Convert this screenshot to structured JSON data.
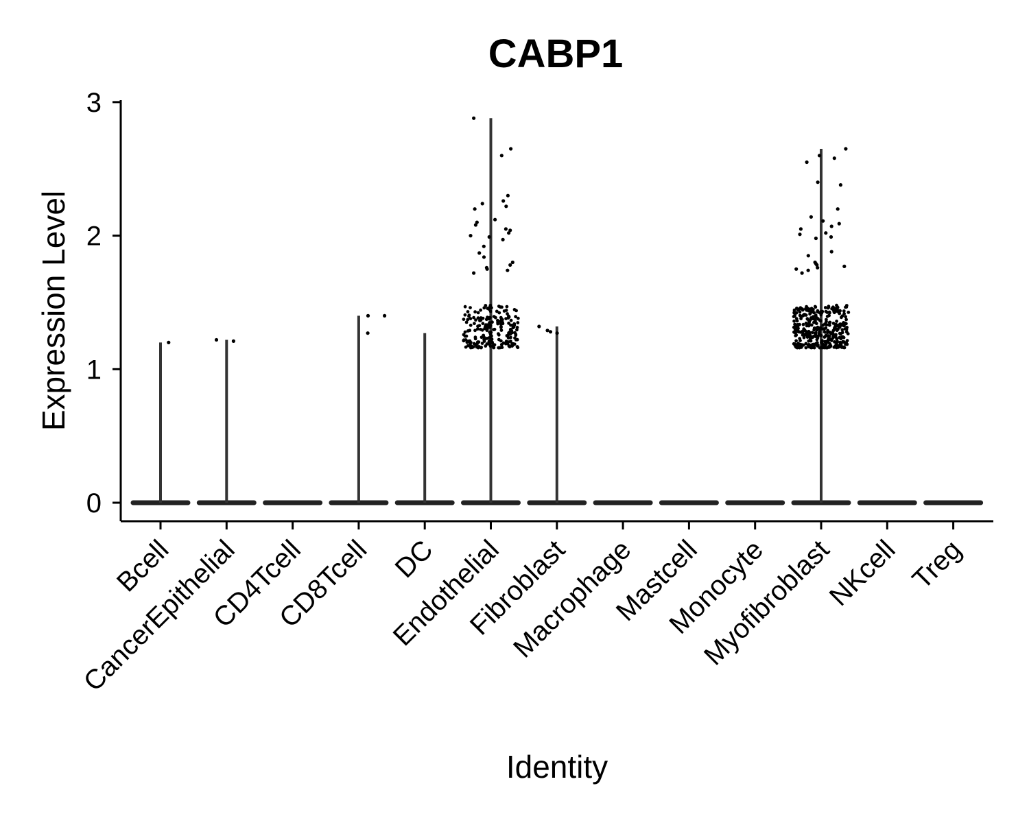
{
  "chart_data": {
    "type": "violin",
    "title": "CABP1",
    "xlabel": "Identity",
    "ylabel": "Expression Level",
    "ylim": [
      -0.14,
      3.02
    ],
    "yticks": [
      0,
      1,
      2,
      3
    ],
    "grid": false,
    "legend": "none",
    "categories": [
      "Bcell",
      "CancerEpithelial",
      "CD4Tcell",
      "CD8Tcell",
      "DC",
      "Endothelial",
      "Fibroblast",
      "Macrophage",
      "Mastcell",
      "Monocyte",
      "Myofibroblast",
      "NKcell",
      "Treg"
    ],
    "max_values": [
      1.2,
      1.22,
      0,
      1.4,
      1.27,
      2.88,
      1.32,
      0,
      0,
      0,
      2.65,
      0,
      0
    ],
    "points": [
      {
        "category": "Bcell",
        "values": [
          1.2
        ]
      },
      {
        "category": "CancerEpithelial",
        "values": [
          1.22,
          1.21
        ]
      },
      {
        "category": "CD4Tcell",
        "values": []
      },
      {
        "category": "CD8Tcell",
        "values": [
          1.4,
          1.4,
          1.27
        ]
      },
      {
        "category": "DC",
        "values": []
      },
      {
        "category": "Endothelial",
        "values": [
          2.88,
          2.65,
          2.6,
          2.3,
          2.26,
          2.24,
          2.22,
          2.2,
          2.12,
          2.1,
          2.08,
          2.05,
          2.04,
          2.02,
          2.0,
          1.99,
          1.97,
          1.92,
          1.87,
          1.84,
          1.8,
          1.78,
          1.76,
          1.75,
          1.74,
          1.72
        ]
      },
      {
        "category": "Fibroblast",
        "values": [
          1.32,
          1.29,
          1.28,
          1.27
        ]
      },
      {
        "category": "Macrophage",
        "values": []
      },
      {
        "category": "Mastcell",
        "values": []
      },
      {
        "category": "Monocyte",
        "values": []
      },
      {
        "category": "Myofibroblast",
        "values": [
          2.65,
          2.6,
          2.58,
          2.55,
          2.4,
          2.38,
          2.2,
          2.14,
          2.11,
          2.09,
          2.07,
          2.05,
          2.02,
          2.01,
          1.99,
          1.98,
          1.88,
          1.85,
          1.8,
          1.79,
          1.78,
          1.77,
          1.76,
          1.75,
          1.74,
          1.72
        ]
      },
      {
        "category": "NKcell",
        "values": []
      },
      {
        "category": "Treg",
        "values": []
      }
    ],
    "dense_clusters": [
      {
        "category": "Endothelial",
        "range": [
          1.16,
          1.48
        ],
        "count": 210
      },
      {
        "category": "Myofibroblast",
        "range": [
          1.16,
          1.48
        ],
        "count": 380
      }
    ]
  }
}
